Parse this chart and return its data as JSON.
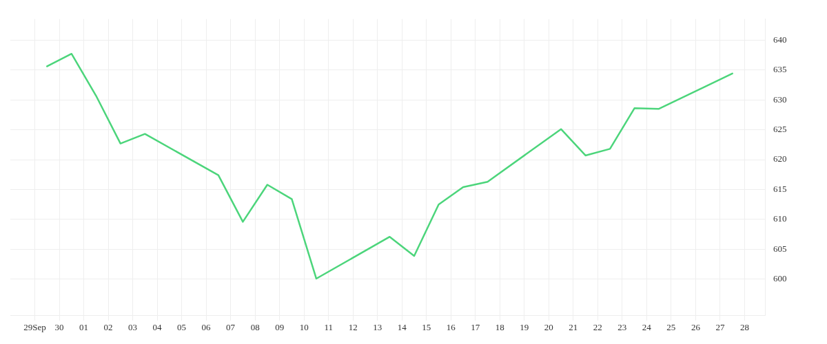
{
  "chart_data": {
    "type": "line",
    "x": [
      "--09-29T12:00",
      "--09-30T12:00",
      "--10-01T12:00",
      "--10-02T12:00",
      "--10-03T12:00",
      "--10-06T12:00",
      "--10-07T12:00",
      "--10-08T12:00",
      "--10-09T12:00",
      "--10-10T12:00",
      "--10-13T12:00",
      "--10-14T12:00",
      "--10-15T12:00",
      "--10-16T12:00",
      "--10-17T12:00",
      "--10-20T12:00",
      "--10-21T12:00",
      "--10-22T12:00",
      "--10-23T12:00",
      "--10-24T12:00",
      "--10-27T12:00"
    ],
    "series": [
      {
        "color": "#4cd57b",
        "values": [
          635.6,
          637.7,
          630.7,
          622.7,
          624.3,
          617.4,
          609.6,
          615.8,
          613.4,
          600.1,
          607.1,
          603.9,
          612.5,
          615.4,
          616.3,
          625.1,
          620.7,
          621.8,
          628.6,
          628.5,
          634.4
        ]
      }
    ],
    "xlim": [
      "--09-28T00:00",
      "--10-28T20:00"
    ],
    "xticks": [
      {
        "value": "--09-29",
        "label": "29Sep"
      },
      {
        "value": "--09-30",
        "label": "30"
      },
      {
        "value": "--10-01",
        "label": "01"
      },
      {
        "value": "--10-02",
        "label": "02"
      },
      {
        "value": "--10-03",
        "label": "03"
      },
      {
        "value": "--10-04",
        "label": "04"
      },
      {
        "value": "--10-05",
        "label": "05"
      },
      {
        "value": "--10-06",
        "label": "06"
      },
      {
        "value": "--10-07",
        "label": "07"
      },
      {
        "value": "--10-08",
        "label": "08"
      },
      {
        "value": "--10-09",
        "label": "09"
      },
      {
        "value": "--10-10",
        "label": "10"
      },
      {
        "value": "--10-11",
        "label": "11"
      },
      {
        "value": "--10-12",
        "label": "12"
      },
      {
        "value": "--10-13",
        "label": "13"
      },
      {
        "value": "--10-14",
        "label": "14"
      },
      {
        "value": "--10-15",
        "label": "15"
      },
      {
        "value": "--10-16",
        "label": "16"
      },
      {
        "value": "--10-17",
        "label": "17"
      },
      {
        "value": "--10-18",
        "label": "18"
      },
      {
        "value": "--10-19",
        "label": "19"
      },
      {
        "value": "--10-20",
        "label": "20"
      },
      {
        "value": "--10-21",
        "label": "21"
      },
      {
        "value": "--10-22",
        "label": "22"
      },
      {
        "value": "--10-23",
        "label": "23"
      },
      {
        "value": "--10-24",
        "label": "24"
      },
      {
        "value": "--10-25",
        "label": "25"
      },
      {
        "value": "--10-26",
        "label": "26"
      },
      {
        "value": "--10-27",
        "label": "27"
      },
      {
        "value": "--10-28",
        "label": "28"
      }
    ],
    "ylim": [
      594,
      643.5
    ],
    "yticks": [
      600,
      605,
      610,
      615,
      620,
      625,
      630,
      635,
      640
    ],
    "grid": true,
    "legend": false,
    "marker": "none",
    "line_style": "solid"
  }
}
